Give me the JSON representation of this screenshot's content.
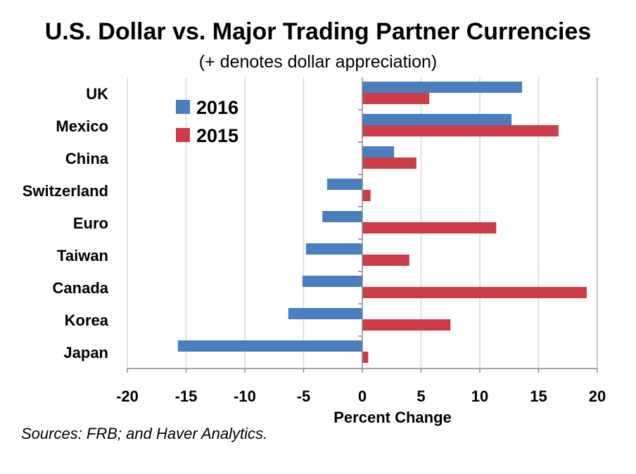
{
  "chart_data": {
    "type": "bar",
    "orientation": "horizontal",
    "title": "U.S. Dollar vs. Major Trading Partner Currencies",
    "subtitle": "(+ denotes dollar appreciation)",
    "xlabel": "Percent Change",
    "ylabel": "",
    "xlim": [
      -20,
      20
    ],
    "xticks": [
      -20,
      -15,
      -10,
      -5,
      0,
      5,
      10,
      15,
      20
    ],
    "grid": true,
    "legend_position": "top-left",
    "categories": [
      "UK",
      "Mexico",
      "China",
      "Switzerland",
      "Euro",
      "Taiwan",
      "Canada",
      "Korea",
      "Japan"
    ],
    "series": [
      {
        "name": "2016",
        "color": "#4a7ebf",
        "values": [
          13.6,
          12.7,
          2.7,
          -3.0,
          -3.4,
          -4.8,
          -5.1,
          -6.3,
          -15.7
        ]
      },
      {
        "name": "2015",
        "color": "#cc3c46",
        "values": [
          5.7,
          16.7,
          4.6,
          0.7,
          11.4,
          4.0,
          19.1,
          7.5,
          0.5
        ]
      }
    ]
  },
  "source": "Sources: FRB; and Haver Analytics."
}
